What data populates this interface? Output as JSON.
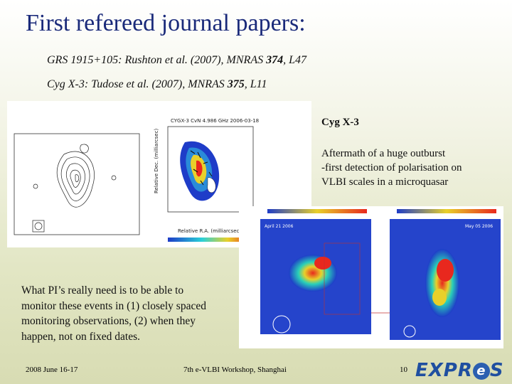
{
  "slide": {
    "title": "First refereed journal papers:",
    "refs": [
      {
        "text": "GRS 1915+105: Rushton et al. (2007), MNRAS ",
        "vol": "374",
        "tail": ", L47"
      },
      {
        "text": "Cyg X-3: Tudose et al. (2007), MNRAS ",
        "vol": "375",
        "tail": ", L11"
      }
    ],
    "cyg_label": "Cyg X-3",
    "aftermath": [
      "Aftermath of a huge outburst",
      "-first detection of polarisation on",
      "VLBI scales in a microquasar"
    ],
    "pi_text": [
      "What PI’s really need is to be able to",
      "monitor these events in (1) closely spaced",
      "monitoring observations, (2) when they",
      "happen, not on fixed dates."
    ],
    "footer_date": "2008 June 16-17",
    "footer_event": "7th e-VLBI Workshop, Shanghai",
    "page": "10",
    "logo_left": "EXPR",
    "logo_e": "e",
    "logo_right": "S"
  },
  "colors": {
    "title": "#1a2a7a",
    "map_blue": "#1e3cc8",
    "map_hot": "#e8281e"
  },
  "figures": {
    "panel1_title": "CYGX-3  CvN  4.986 GHz  2006-03-18",
    "panel1_axis": "Relative R.A. (milliarcsec)",
    "panel1_yaxis": "Relative Dec. (milliarcsec)",
    "panel2_date": "April 21 2006",
    "panel3_date": "May 05 2006"
  }
}
